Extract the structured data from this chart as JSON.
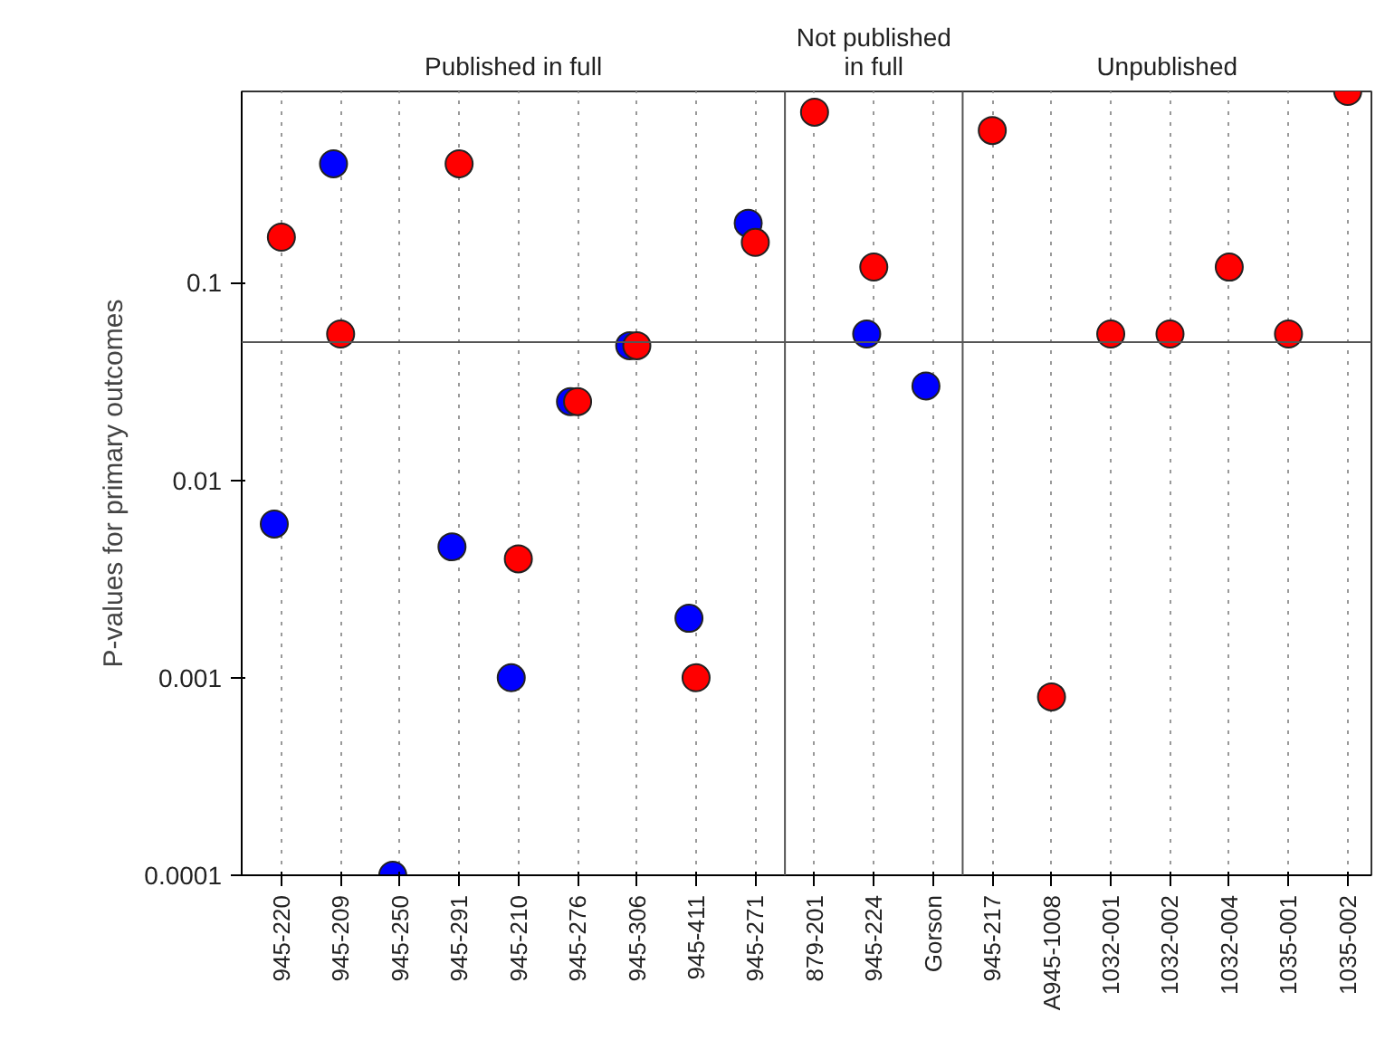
{
  "chart_data": {
    "type": "scatter",
    "ylabel": "P-values for primary outcomes",
    "categories": [
      "945-220",
      "945-209",
      "945-250",
      "945-291",
      "945-210",
      "945-276",
      "945-306",
      "945-411",
      "945-271",
      "879-201",
      "945-224",
      "Gorson",
      "945-217",
      "A945-1008",
      "1032-001",
      "1032-002",
      "1032-004",
      "1035-001",
      "1035-002"
    ],
    "series": [
      {
        "color": "#ff0000",
        "values": [
          0.17,
          0.055,
          null,
          0.4,
          0.004,
          0.025,
          0.048,
          0.001,
          0.16,
          0.73,
          0.12,
          null,
          0.59,
          0.0008,
          0.055,
          0.055,
          0.12,
          0.055,
          0.93
        ]
      },
      {
        "color": "#0000ff",
        "values": [
          0.006,
          0.4,
          0.0001,
          0.0046,
          0.001,
          0.025,
          0.048,
          0.002,
          0.2,
          null,
          0.055,
          0.03,
          null,
          null,
          null,
          null,
          null,
          null,
          null
        ]
      }
    ],
    "log": "y",
    "ylim": [
      0.0001,
      0.93
    ],
    "yticks": [
      0.0001,
      0.001,
      0.01,
      0.1
    ],
    "grid": "x",
    "marker": "circle",
    "ref_lines": [
      {
        "axis": "y",
        "value": 0.05,
        "color": "#555555"
      }
    ],
    "annotations": [
      "Published in full",
      "Not published\nin full",
      "Unpublished"
    ]
  }
}
